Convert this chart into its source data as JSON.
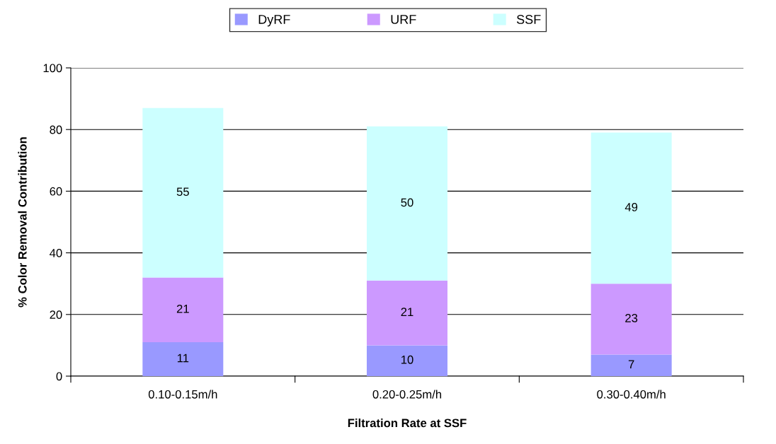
{
  "chart_data": {
    "type": "bar",
    "stacked": true,
    "xlabel": "Filtration Rate at SSF",
    "ylabel": "% Color Removal Contribution",
    "categories": [
      "0.10-0.15m/h",
      "0.20-0.25m/h",
      "0.30-0.40m/h"
    ],
    "series": [
      {
        "name": "DyRF",
        "color": "#9999ff",
        "values": [
          11,
          10,
          7
        ]
      },
      {
        "name": "URF",
        "color": "#cc99ff",
        "values": [
          21,
          21,
          23
        ]
      },
      {
        "name": "SSF",
        "color": "#ccffff",
        "values": [
          55,
          50,
          49
        ]
      }
    ],
    "ylim": [
      0,
      100
    ],
    "yticks": [
      0,
      20,
      40,
      60,
      80,
      100
    ],
    "grid": "y",
    "legend": "top",
    "data_labels": true
  }
}
